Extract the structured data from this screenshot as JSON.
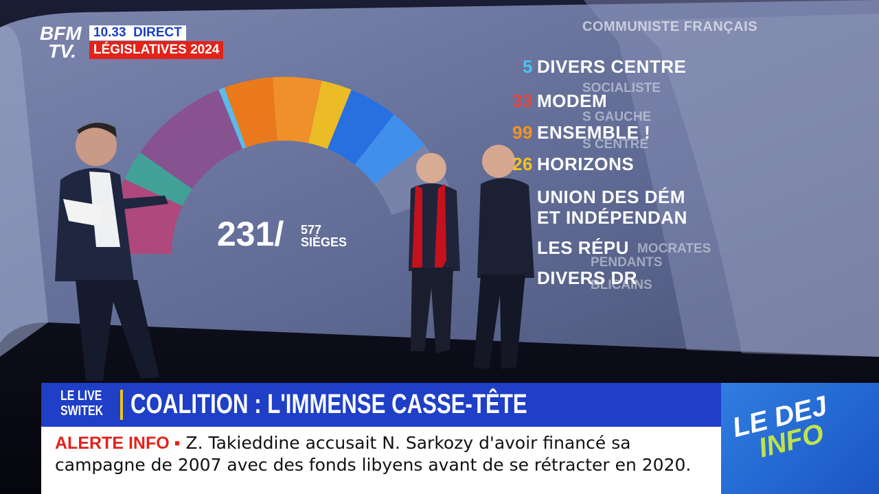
{
  "logo": {
    "line1": "BFM",
    "line2": "TV."
  },
  "header": {
    "time": "10.33",
    "live": "DIRECT",
    "program": "LÉGISLATIVES 2024"
  },
  "screen": {
    "seats": "231/",
    "total": "577",
    "total_label": "SIÈGES",
    "legend": [
      {
        "number": "",
        "label": "COMMUNISTE FRANÇAIS"
      },
      {
        "number": "5",
        "label": "DIVERS CENTRE"
      },
      {
        "number": "33",
        "label": "MODEM"
      },
      {
        "number": "99",
        "label": "ENSEMBLE !"
      },
      {
        "number": "26",
        "label": "HORIZONS"
      },
      {
        "number": "",
        "label": "UNION DES DÉM"
      },
      {
        "number": "",
        "label": "ET INDÉPENDAN"
      },
      {
        "number": "",
        "label": "LES RÉPU"
      },
      {
        "number": "",
        "label": "DIVERS DR"
      }
    ],
    "ghost_labels": [
      "SOCIALISTE",
      "S GAUCHE",
      "S CENTRE",
      "MOCRATES",
      "PENDANTS",
      "BLICAINS"
    ]
  },
  "banner": {
    "show_line1": "LE LIVE",
    "show_line2": "SWITEK",
    "headline": "COALITION : L'IMMENSE CASSE-TÊTE"
  },
  "ticker": {
    "tag": "ALERTE INFO ▪",
    "line1": "Z. Takieddine accusait N. Sarkozy d'avoir financé sa",
    "line2": "campagne de 2007 avec des fonds libyens avant de se rétracter en 2020."
  },
  "promo": {
    "line1": "LE DEJ",
    "line2": "INFO"
  }
}
